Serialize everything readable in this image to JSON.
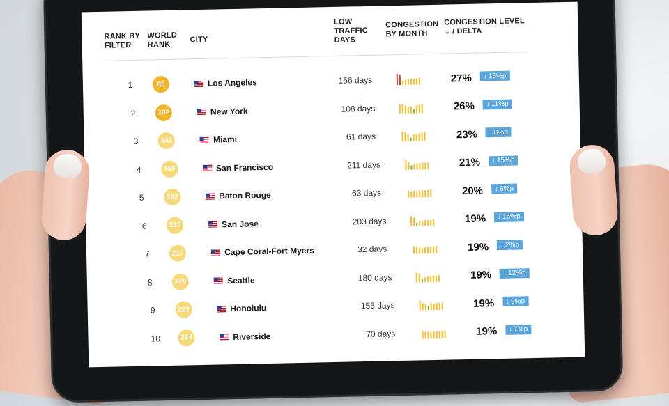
{
  "headers": {
    "rank_by_filter": [
      "RANK BY",
      "FILTER"
    ],
    "world_rank": [
      "WORLD",
      "RANK"
    ],
    "city": "CITY",
    "low_traffic_days": [
      "LOW",
      "TRAFFIC",
      "DAYS"
    ],
    "congestion_by_month": [
      "CONGESTION",
      "BY MONTH"
    ],
    "congestion_level": "CONGESTION LEVEL",
    "delta": "/ DELTA"
  },
  "colors": {
    "badge_dark": "#f0b429",
    "badge_light": "#f7d97a",
    "delta_bg": "#5aa6dc",
    "spark_red": "#d9342b",
    "spark_yellow": "#f3bf2e",
    "spark_green": "#6fb544",
    "sort_arrow": "#e0352a"
  },
  "rows": [
    {
      "rank": "1",
      "world_rank": "85",
      "city": "Los Angeles",
      "days": "156 days",
      "level": "27%",
      "delta": "15%p",
      "badge_tone": "dark",
      "spark": [
        "r",
        "r",
        "y",
        "y",
        "y",
        "y",
        "y",
        "y",
        "y"
      ],
      "heights": [
        1,
        0.9,
        0.35,
        0.45,
        0.5,
        0.55,
        0.5,
        0.55,
        0.6
      ]
    },
    {
      "rank": "2",
      "world_rank": "102",
      "city": "New York",
      "days": "108 days",
      "level": "26%",
      "delta": "11%p",
      "badge_tone": "dark",
      "spark": [
        "y",
        "y",
        "y",
        "y",
        "y",
        "g",
        "y",
        "y",
        "y"
      ],
      "heights": [
        0.8,
        0.9,
        0.7,
        0.65,
        0.6,
        0.4,
        0.7,
        0.75,
        0.8
      ]
    },
    {
      "rank": "3",
      "world_rank": "141",
      "city": "Miami",
      "days": "61 days",
      "level": "23%",
      "delta": "8%p",
      "badge_tone": "light",
      "spark": [
        "y",
        "y",
        "y",
        "g",
        "y",
        "y",
        "y",
        "y",
        "y"
      ],
      "heights": [
        0.9,
        0.8,
        0.6,
        0.3,
        0.6,
        0.65,
        0.7,
        0.75,
        0.8
      ]
    },
    {
      "rank": "4",
      "world_rank": "169",
      "city": "San Francisco",
      "days": "211 days",
      "level": "21%",
      "delta": "15%p",
      "badge_tone": "light",
      "spark": [
        "y",
        "y",
        "g",
        "y",
        "y",
        "y",
        "y",
        "y",
        "y"
      ],
      "heights": [
        0.9,
        0.7,
        0.35,
        0.5,
        0.55,
        0.55,
        0.6,
        0.6,
        0.65
      ]
    },
    {
      "rank": "5",
      "world_rank": "192",
      "city": "Baton Rouge",
      "days": "63 days",
      "level": "20%",
      "delta": "6%p",
      "badge_tone": "light",
      "spark": [
        "y",
        "y",
        "y",
        "y",
        "y",
        "y",
        "y",
        "y",
        "y"
      ],
      "heights": [
        0.6,
        0.55,
        0.6,
        0.55,
        0.6,
        0.6,
        0.65,
        0.65,
        0.7
      ]
    },
    {
      "rank": "6",
      "world_rank": "213",
      "city": "San Jose",
      "days": "203 days",
      "level": "19%",
      "delta": "16%p",
      "badge_tone": "light",
      "spark": [
        "y",
        "y",
        "g",
        "y",
        "y",
        "y",
        "y",
        "y",
        "y"
      ],
      "heights": [
        0.9,
        0.75,
        0.3,
        0.45,
        0.45,
        0.5,
        0.5,
        0.5,
        0.55
      ]
    },
    {
      "rank": "7",
      "world_rank": "217",
      "city": "Cape Coral-Fort Myers",
      "days": "32 days",
      "level": "19%",
      "delta": "2%p",
      "badge_tone": "light",
      "spark": [
        "y",
        "y",
        "y",
        "y",
        "y",
        "y",
        "y",
        "y",
        "y"
      ],
      "heights": [
        0.7,
        0.65,
        0.55,
        0.5,
        0.55,
        0.6,
        0.6,
        0.65,
        0.7
      ]
    },
    {
      "rank": "8",
      "world_rank": "220",
      "city": "Seattle",
      "days": "180 days",
      "level": "19%",
      "delta": "12%p",
      "badge_tone": "light",
      "spark": [
        "y",
        "y",
        "g",
        "y",
        "y",
        "y",
        "y",
        "y",
        "y"
      ],
      "heights": [
        0.85,
        0.75,
        0.3,
        0.45,
        0.5,
        0.5,
        0.55,
        0.55,
        0.6
      ]
    },
    {
      "rank": "9",
      "world_rank": "222",
      "city": "Honolulu",
      "days": "155 days",
      "level": "19%",
      "delta": "9%p",
      "badge_tone": "light",
      "spark": [
        "y",
        "y",
        "y",
        "g",
        "y",
        "y",
        "y",
        "y",
        "y"
      ],
      "heights": [
        0.85,
        0.6,
        0.55,
        0.35,
        0.6,
        0.55,
        0.6,
        0.6,
        0.65
      ]
    },
    {
      "rank": "10",
      "world_rank": "234",
      "city": "Riverside",
      "days": "70 days",
      "level": "19%",
      "delta": "7%p",
      "badge_tone": "light",
      "spark": [
        "y",
        "y",
        "y",
        "y",
        "y",
        "y",
        "y",
        "y",
        "y"
      ],
      "heights": [
        0.7,
        0.65,
        0.6,
        0.55,
        0.6,
        0.6,
        0.65,
        0.65,
        0.7
      ]
    }
  ]
}
